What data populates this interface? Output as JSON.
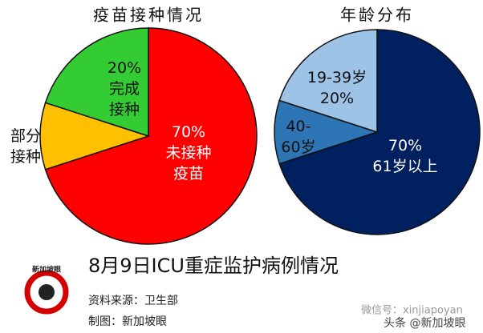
{
  "chart_data": [
    {
      "type": "pie",
      "title": "疫苗接种情况",
      "categories": [
        [
          "未接种",
          "疫苗"
        ],
        [
          "部分",
          "接种"
        ],
        [
          "完成",
          "接种"
        ]
      ],
      "values": [
        70,
        10,
        20
      ],
      "value_labels": [
        "70%",
        null,
        "20%"
      ],
      "colors": [
        "#ff0000",
        "#ffc000",
        "#33cc33"
      ]
    },
    {
      "type": "pie",
      "title": "年龄分布",
      "categories": [
        [
          "61岁以上"
        ],
        [
          "40-",
          "60岁"
        ],
        [
          "19-39岁"
        ]
      ],
      "values": [
        70,
        10,
        20
      ],
      "value_labels": [
        "70%",
        null,
        "20%"
      ],
      "colors": [
        "#002060",
        "#2e75b6",
        "#9dc3e6"
      ]
    }
  ],
  "footer": {
    "heading": "8月9日ICU重症监护病例情况",
    "source": "资料来源：卫生部",
    "credit": "制图：新加坡眼",
    "logo": "新加坡眼",
    "watermark": "微信号：xinjiapoyan",
    "platform": "头条 @新加坡眼"
  }
}
